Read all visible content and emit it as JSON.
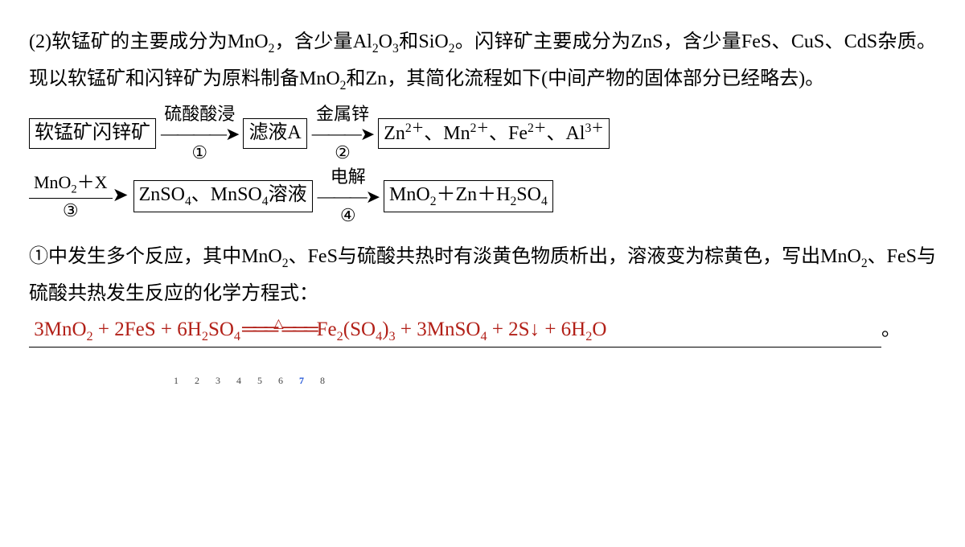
{
  "paragraph": {
    "prefix": "(2)",
    "t1": "软锰矿的主要成分为",
    "f1_a": "MnO",
    "f1_b": "2",
    "t2": "，含少量",
    "f2_a": "Al",
    "f2_b": "2",
    "f2_c": "O",
    "f2_d": "3",
    "t3": "和",
    "f3_a": "SiO",
    "f3_b": "2",
    "t4": "。闪锌矿主要成分为",
    "t5": "ZnS，含少量FeS、CuS、CdS杂质。现以软锰矿和闪锌矿为原料制备",
    "f4_a": "MnO",
    "f4_b": "2",
    "t6": "和Zn，其简化流程如下(中间产物的固体部分已经略去)。"
  },
  "flow": {
    "box1": "软锰矿闪锌矿",
    "a1_top": "硫酸酸浸",
    "a1_bot": "①",
    "box2": "滤液A",
    "a2_top": "金属锌",
    "a2_bot": "②",
    "box3_a": "Zn",
    "box3_b": "2＋",
    "box3_c": "、Mn",
    "box3_d": "2＋",
    "box3_e": "、Fe",
    "box3_f": "2＋",
    "box3_g": "、Al",
    "box3_h": "3＋",
    "a3_num_a": "MnO",
    "a3_num_b": "2",
    "a3_num_c": "＋X",
    "a3_den": "③",
    "box4_a": "ZnSO",
    "box4_b": "4",
    "box4_c": "、MnSO",
    "box4_d": "4",
    "box4_e": "溶液",
    "a4_top": "电解",
    "a4_bot": "④",
    "box5_a": "MnO",
    "box5_b": "2",
    "box5_c": "＋Zn＋H",
    "box5_d": "2",
    "box5_e": "SO",
    "box5_f": "4"
  },
  "question": {
    "t1": "①中发生多个反应，其中",
    "f1_a": "MnO",
    "f1_b": "2",
    "t2": "、FeS与硫酸共热时有淡黄色物质析出，",
    "t3": "溶液变为棕黄色，写出",
    "f2_a": "MnO",
    "f2_b": "2",
    "t4": "、FeS与硫酸共热发生反应的化学方程式：",
    "period_after": "。"
  },
  "answer": {
    "lhs_a": "3MnO",
    "lhs_b": "2",
    "lhs_c": " + 2FeS + 6H",
    "lhs_d": "2",
    "lhs_e": "SO",
    "lhs_f": "4",
    "triangle": "△",
    "rhs_a": "Fe",
    "rhs_b": "2",
    "rhs_c": "(SO",
    "rhs_d": "4",
    "rhs_e": ")",
    "rhs_f": "3",
    "rhs_g": " + 3MnSO",
    "rhs_h": "4",
    "rhs_i": " + 2S↓ + 6H",
    "rhs_j": "2",
    "rhs_k": "O"
  },
  "pager": {
    "pages": [
      "1",
      "2",
      "3",
      "4",
      "5",
      "6",
      "7",
      "8"
    ],
    "current": 7
  },
  "colors": {
    "answer": "#b22018",
    "text": "#000000",
    "pager_current": "#1a4fd6"
  }
}
